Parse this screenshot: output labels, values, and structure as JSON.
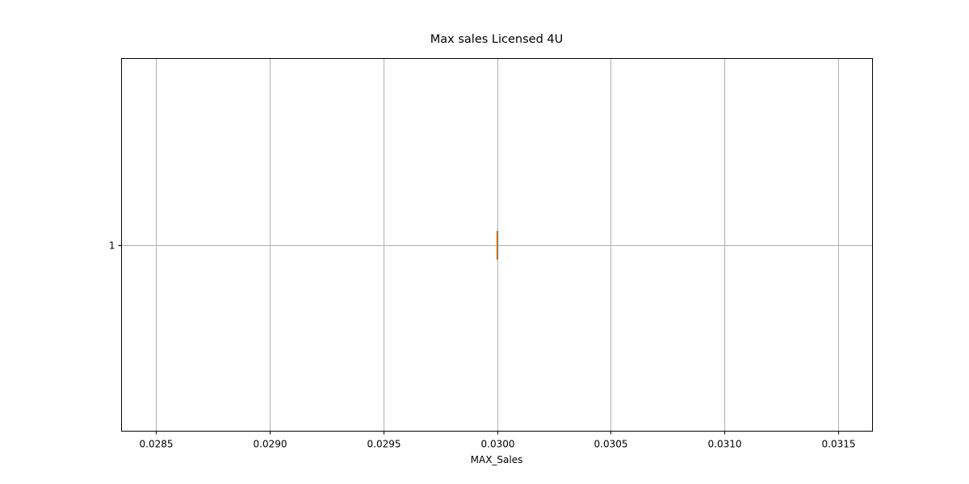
{
  "chart_data": {
    "type": "box",
    "orientation": "horizontal",
    "title": "Max sales Licensed 4U",
    "xlabel": "MAX_Sales",
    "ylabel": "",
    "xlim": [
      0.02835,
      0.03165
    ],
    "xticks": [
      0.0285,
      0.029,
      0.0295,
      0.03,
      0.0305,
      0.031,
      0.0315
    ],
    "xtick_labels": [
      "0.0285",
      "0.0290",
      "0.0295",
      "0.0300",
      "0.0305",
      "0.0310",
      "0.0315"
    ],
    "categories": [
      "1"
    ],
    "boxes": [
      {
        "category": "1",
        "whislo": 0.03,
        "q1": 0.03,
        "med": 0.03,
        "q3": 0.03,
        "whishi": 0.03
      }
    ],
    "grid": true,
    "colors": {
      "box": "#1f77b4",
      "median": "#ff7f0e",
      "grid": "#b0b0b0",
      "axes": "#000000"
    }
  }
}
